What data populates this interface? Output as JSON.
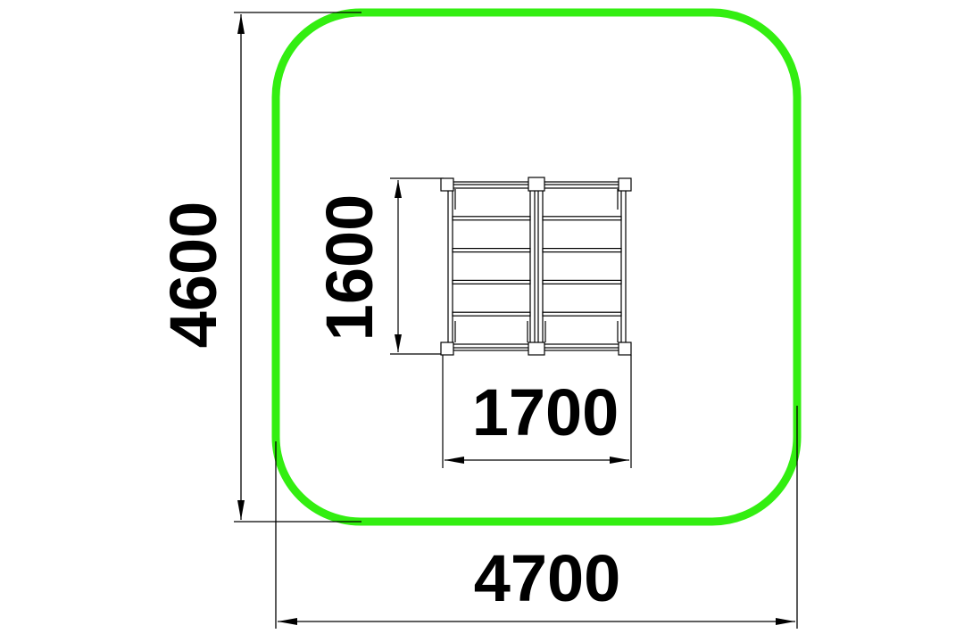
{
  "drawing": {
    "colors": {
      "safety_zone": "#33ee11",
      "lines": "#000000",
      "background": "#ffffff"
    },
    "dimensions": {
      "overall_width": "4700",
      "overall_height": "4600",
      "equipment_width": "1700",
      "equipment_height": "1600"
    },
    "equipment": {
      "sections": 2,
      "rungs_per_section": 6
    }
  }
}
